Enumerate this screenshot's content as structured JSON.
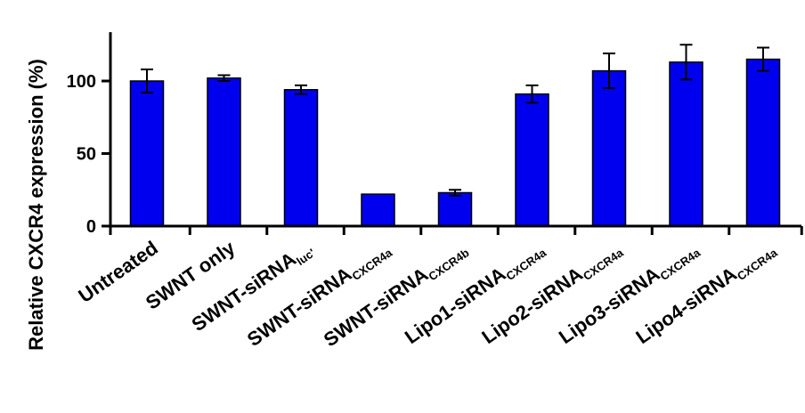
{
  "chart_data": {
    "type": "bar",
    "title": "",
    "xlabel": "",
    "ylabel": "Relative CXCR4 expression (%)",
    "ylim": [
      0,
      130
    ],
    "yticks": [
      0,
      50,
      100
    ],
    "grid": false,
    "bar_color": "#0000ee",
    "categories": [
      {
        "main": "Untreated",
        "sub": ""
      },
      {
        "main": "SWNT only",
        "sub": ""
      },
      {
        "main": "SWNT-siRNA",
        "sub": "luc'"
      },
      {
        "main": "SWNT-siRNA",
        "sub": "CXCR4a"
      },
      {
        "main": "SWNT-siRNA",
        "sub": "CXCR4b"
      },
      {
        "main": "Lipo1-siRNA",
        "sub": "CXCR4a"
      },
      {
        "main": "Lipo2-siRNA",
        "sub": "CXCR4a"
      },
      {
        "main": "Lipo3-siRNA",
        "sub": "CXCR4a"
      },
      {
        "main": "Lipo4-siRNA",
        "sub": "CXCR4a"
      }
    ],
    "values": [
      100,
      102,
      94,
      22,
      23,
      91,
      107,
      113,
      115
    ],
    "errors": [
      8,
      2,
      3,
      0,
      2,
      6,
      12,
      12,
      8
    ]
  }
}
